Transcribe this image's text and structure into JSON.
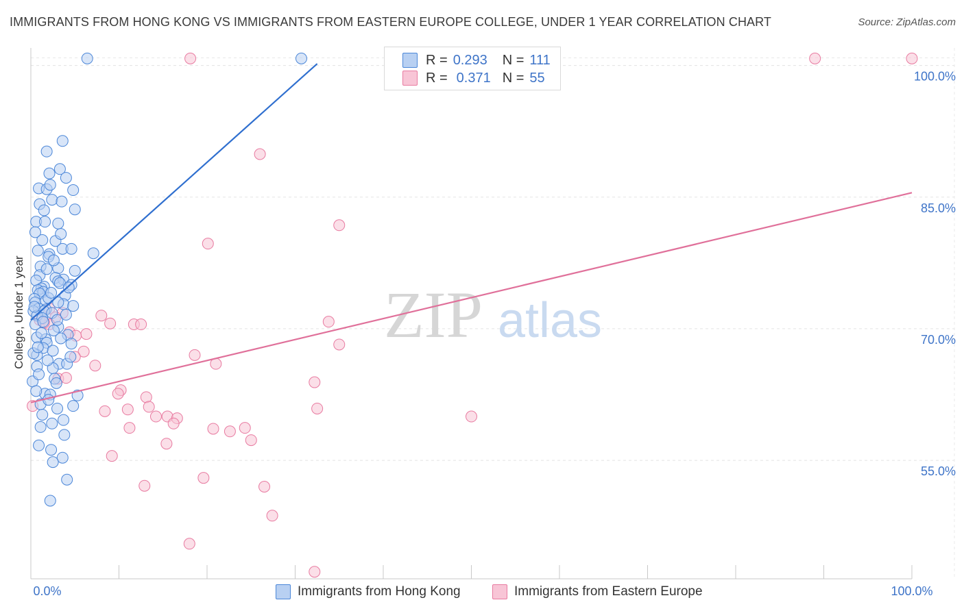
{
  "title": "IMMIGRANTS FROM HONG KONG VS IMMIGRANTS FROM EASTERN EUROPE COLLEGE, UNDER 1 YEAR CORRELATION CHART",
  "source": "Source: ZipAtlas.com",
  "watermark": {
    "zip": "ZIP",
    "atlas": "atlas"
  },
  "legend": {
    "r_label": "R =",
    "n_label": "N =",
    "rows": [
      {
        "r": "0.293",
        "n": "111",
        "color": "#4a86d8",
        "fill": "#b8d0f2"
      },
      {
        "r": "0.371",
        "n": "55",
        "color": "#e87aa0",
        "fill": "#f8c5d6"
      }
    ]
  },
  "chart_data": {
    "type": "scatter",
    "xlabel": "",
    "ylabel": "College, Under 1 year",
    "xlim": [
      0,
      100
    ],
    "ylim": [
      41.5,
      102
    ],
    "x_tick_labels": [
      {
        "value": 0,
        "label": "0.0%"
      },
      {
        "value": 100,
        "label": "100.0%"
      }
    ],
    "y_tick_labels": [
      {
        "value": 100,
        "label": "100.0%"
      },
      {
        "value": 85,
        "label": "85.0%"
      },
      {
        "value": 70,
        "label": "70.0%"
      },
      {
        "value": 55,
        "label": "55.0%"
      }
    ],
    "grid": true,
    "legend_position": "top-center",
    "series": [
      {
        "name": "Immigrants from Hong Kong",
        "color": "#4a86d8",
        "fill": "#b8d0f2",
        "trend": {
          "x": [
            0,
            32.5
          ],
          "y": [
            71.0,
            100.2
          ]
        },
        "points": [
          [
            6.4,
            100.8
          ],
          [
            30.7,
            100.8
          ],
          [
            3.6,
            91.4
          ],
          [
            1.8,
            90.2
          ],
          [
            3.3,
            88.2
          ],
          [
            2.1,
            87.7
          ],
          [
            4.0,
            87.2
          ],
          [
            0.9,
            86.0
          ],
          [
            1.8,
            85.9
          ],
          [
            4.8,
            85.8
          ],
          [
            2.4,
            84.7
          ],
          [
            3.5,
            84.5
          ],
          [
            1.0,
            84.2
          ],
          [
            5.0,
            83.6
          ],
          [
            0.6,
            82.2
          ],
          [
            1.6,
            82.2
          ],
          [
            3.1,
            82.0
          ],
          [
            1.3,
            80.1
          ],
          [
            2.8,
            80.0
          ],
          [
            3.6,
            79.1
          ],
          [
            4.6,
            79.1
          ],
          [
            7.1,
            78.6
          ],
          [
            2.1,
            78.5
          ],
          [
            2.0,
            78.2
          ],
          [
            1.1,
            77.1
          ],
          [
            3.1,
            76.9
          ],
          [
            5.0,
            76.6
          ],
          [
            1.0,
            76.1
          ],
          [
            2.8,
            75.8
          ],
          [
            3.7,
            75.6
          ],
          [
            0.6,
            75.5
          ],
          [
            3.1,
            75.4
          ],
          [
            3.3,
            75.2
          ],
          [
            4.6,
            75.0
          ],
          [
            1.5,
            74.8
          ],
          [
            1.2,
            74.6
          ],
          [
            0.8,
            74.4
          ],
          [
            1.4,
            74.2
          ],
          [
            1.0,
            74.0
          ],
          [
            3.9,
            73.8
          ],
          [
            0.4,
            73.4
          ],
          [
            1.7,
            73.2
          ],
          [
            0.5,
            73.0
          ],
          [
            3.7,
            72.8
          ],
          [
            4.8,
            72.6
          ],
          [
            0.9,
            72.3
          ],
          [
            1.7,
            72.2
          ],
          [
            0.3,
            72.0
          ],
          [
            1.5,
            72.0
          ],
          [
            2.4,
            71.8
          ],
          [
            0.7,
            71.5
          ],
          [
            1.3,
            71.2
          ],
          [
            3.1,
            70.2
          ],
          [
            4.2,
            69.3
          ],
          [
            0.7,
            69.0
          ],
          [
            1.7,
            68.8
          ],
          [
            1.8,
            68.4
          ],
          [
            4.6,
            68.3
          ],
          [
            1.4,
            67.8
          ],
          [
            2.5,
            67.5
          ],
          [
            0.7,
            67.0
          ],
          [
            3.2,
            66.0
          ],
          [
            4.1,
            66.0
          ],
          [
            0.7,
            65.7
          ],
          [
            2.5,
            65.5
          ],
          [
            2.7,
            64.3
          ],
          [
            0.2,
            64.0
          ],
          [
            5.3,
            62.4
          ],
          [
            1.6,
            62.6
          ],
          [
            2.2,
            62.5
          ],
          [
            1.1,
            61.4
          ],
          [
            4.8,
            61.2
          ],
          [
            3.0,
            60.9
          ],
          [
            3.7,
            59.6
          ],
          [
            2.4,
            59.2
          ],
          [
            0.9,
            56.7
          ],
          [
            2.3,
            56.2
          ],
          [
            3.6,
            55.3
          ],
          [
            2.5,
            54.8
          ],
          [
            4.1,
            52.8
          ],
          [
            2.2,
            50.4
          ],
          [
            0.5,
            70.5
          ],
          [
            2.0,
            73.5
          ],
          [
            1.2,
            69.5
          ],
          [
            3.0,
            71.0
          ],
          [
            0.3,
            67.2
          ],
          [
            1.9,
            66.4
          ],
          [
            4.3,
            74.7
          ],
          [
            2.6,
            77.8
          ],
          [
            0.8,
            78.9
          ],
          [
            3.4,
            80.8
          ],
          [
            1.5,
            83.5
          ],
          [
            2.2,
            86.4
          ],
          [
            0.5,
            81.0
          ],
          [
            4.0,
            71.6
          ],
          [
            2.9,
            63.8
          ],
          [
            1.3,
            60.2
          ],
          [
            3.8,
            57.9
          ],
          [
            0.9,
            64.8
          ],
          [
            2.6,
            69.8
          ],
          [
            1.8,
            76.8
          ],
          [
            0.4,
            72.5
          ],
          [
            3.4,
            68.9
          ],
          [
            2.0,
            61.9
          ],
          [
            1.1,
            58.8
          ],
          [
            4.5,
            66.8
          ],
          [
            0.6,
            62.9
          ],
          [
            3.1,
            73.0
          ],
          [
            1.4,
            70.8
          ],
          [
            2.3,
            74.1
          ],
          [
            0.8,
            67.9
          ]
        ]
      },
      {
        "name": "Immigrants from Eastern Europe",
        "color": "#e87aa0",
        "fill": "#f8c5d6",
        "trend": {
          "x": [
            0,
            100
          ],
          "y": [
            61.6,
            85.5
          ]
        },
        "points": [
          [
            18.1,
            100.8
          ],
          [
            89.0,
            100.8
          ],
          [
            100.0,
            100.8
          ],
          [
            26.0,
            89.9
          ],
          [
            35.0,
            81.8
          ],
          [
            20.1,
            79.7
          ],
          [
            0.2,
            61.2
          ],
          [
            2.1,
            72.3
          ],
          [
            3.6,
            71.8
          ],
          [
            8.0,
            71.5
          ],
          [
            2.8,
            71.3
          ],
          [
            1.0,
            71.0
          ],
          [
            2.1,
            70.5
          ],
          [
            9.0,
            70.6
          ],
          [
            11.7,
            70.5
          ],
          [
            12.5,
            70.5
          ],
          [
            33.8,
            70.8
          ],
          [
            4.4,
            69.6
          ],
          [
            6.3,
            69.4
          ],
          [
            5.1,
            69.2
          ],
          [
            35.0,
            68.2
          ],
          [
            6.0,
            67.4
          ],
          [
            18.6,
            67.0
          ],
          [
            5.0,
            66.8
          ],
          [
            7.3,
            65.8
          ],
          [
            21.0,
            66.0
          ],
          [
            3.1,
            64.3
          ],
          [
            32.2,
            63.9
          ],
          [
            10.2,
            63.0
          ],
          [
            9.9,
            62.6
          ],
          [
            13.1,
            62.2
          ],
          [
            13.4,
            61.1
          ],
          [
            8.4,
            60.6
          ],
          [
            11.0,
            60.8
          ],
          [
            14.2,
            60.0
          ],
          [
            15.5,
            60.0
          ],
          [
            16.6,
            59.8
          ],
          [
            16.2,
            59.2
          ],
          [
            32.5,
            60.9
          ],
          [
            50.0,
            60.0
          ],
          [
            11.2,
            58.7
          ],
          [
            20.7,
            58.6
          ],
          [
            22.6,
            58.3
          ],
          [
            24.3,
            58.7
          ],
          [
            25.0,
            57.3
          ],
          [
            15.4,
            56.9
          ],
          [
            9.2,
            55.5
          ],
          [
            19.6,
            53.0
          ],
          [
            12.9,
            52.1
          ],
          [
            26.5,
            52.0
          ],
          [
            27.4,
            48.7
          ],
          [
            18.0,
            45.5
          ],
          [
            32.2,
            42.3
          ],
          [
            1.5,
            70.7
          ],
          [
            4.0,
            64.4
          ]
        ]
      }
    ]
  }
}
